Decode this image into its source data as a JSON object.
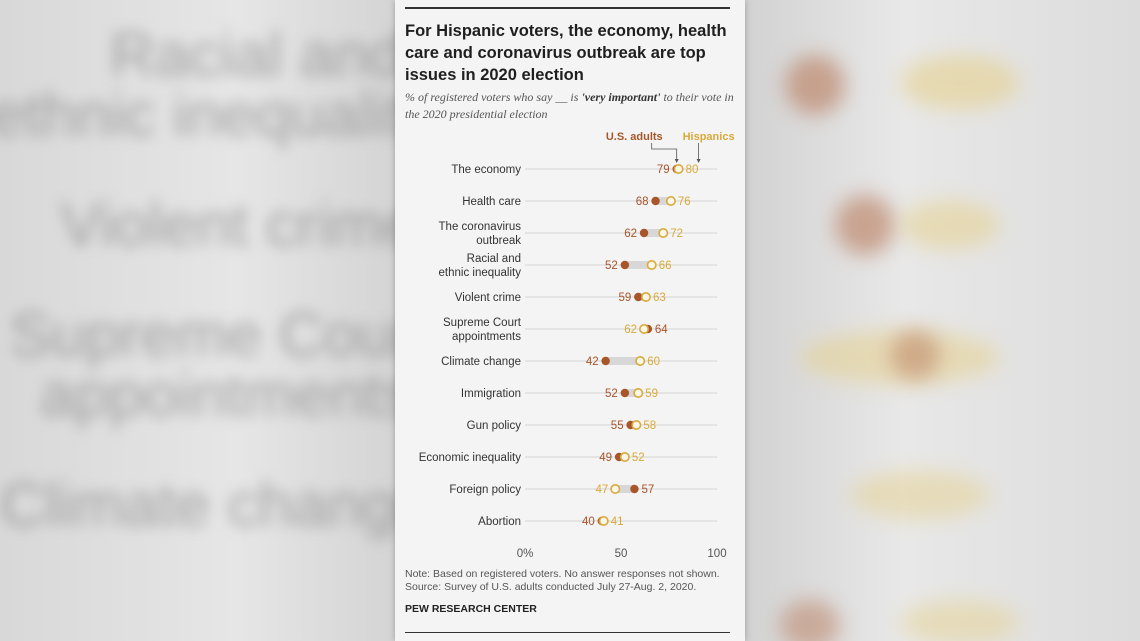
{
  "title": "For Hispanic voters, the economy, health care and coronavirus outbreak are top issues in 2020 election",
  "subtitle_pre": "% of registered voters who say __ is ",
  "subtitle_bold": "'very important'",
  "subtitle_post": " to their vote in the 2020 presidential election",
  "note": "Note: Based on registered voters. No answer responses not shown.",
  "source": "Source: Survey of U.S. adults conducted July 27-Aug. 2, 2020.",
  "footer": "PEW RESEARCH CENTER",
  "colors": {
    "us": "#a8552a",
    "hisp": "#d9aa3a",
    "range": "#d7d7d7",
    "grid": "#c9c9c9",
    "label": "#333333"
  },
  "chart_data": {
    "type": "dot",
    "xlim": [
      0,
      100
    ],
    "xticks": [
      "0%",
      "50",
      "100"
    ],
    "xtick_values": [
      0,
      50,
      100
    ],
    "series": [
      {
        "name": "U.S. adults",
        "key": "us"
      },
      {
        "name": "Hispanics",
        "key": "hisp"
      }
    ],
    "categories": [
      {
        "label": [
          "The economy"
        ],
        "us": 79,
        "hisp": 80
      },
      {
        "label": [
          "Health care"
        ],
        "us": 68,
        "hisp": 76
      },
      {
        "label": [
          "The coronavirus",
          "outbreak"
        ],
        "us": 62,
        "hisp": 72
      },
      {
        "label": [
          "Racial and",
          "ethnic inequality"
        ],
        "us": 52,
        "hisp": 66
      },
      {
        "label": [
          "Violent crime"
        ],
        "us": 59,
        "hisp": 63
      },
      {
        "label": [
          "Supreme Court",
          "appointments"
        ],
        "us": 64,
        "hisp": 62
      },
      {
        "label": [
          "Climate change"
        ],
        "us": 42,
        "hisp": 60
      },
      {
        "label": [
          "Immigration"
        ],
        "us": 52,
        "hisp": 59
      },
      {
        "label": [
          "Gun policy"
        ],
        "us": 55,
        "hisp": 58
      },
      {
        "label": [
          "Economic inequality"
        ],
        "us": 49,
        "hisp": 52
      },
      {
        "label": [
          "Foreign policy"
        ],
        "us": 57,
        "hisp": 47
      },
      {
        "label": [
          "Abortion"
        ],
        "us": 40,
        "hisp": 41
      }
    ]
  },
  "background": {
    "left_words": [
      "Racial and",
      "ethnic inequality",
      "Violent crime",
      "Supreme Court",
      "appointments",
      "Climate change"
    ]
  }
}
